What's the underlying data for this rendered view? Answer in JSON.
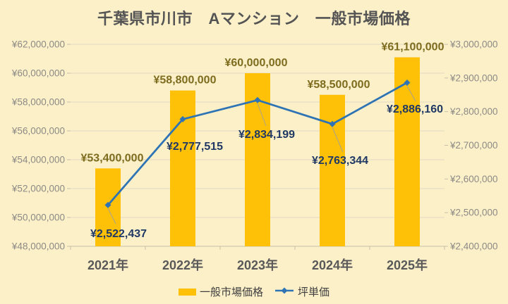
{
  "title": "千葉県市川市　Aマンション　一般市場価格",
  "colors": {
    "background": "#FCF0C9",
    "bar": "#FFC008",
    "line": "#2E74B5",
    "bar_label": "#7E6C1E",
    "line_label": "#1F3864",
    "axis_text": "#8C8A85",
    "category_text": "#595959",
    "grid": "#DFD8C3",
    "baseline": "#C6BFA9",
    "leader": "#ABA28C"
  },
  "chart_data": {
    "type": "combo",
    "title": "千葉県市川市　Aマンション　一般市場価格",
    "categories": [
      "2021年",
      "2022年",
      "2023年",
      "2024年",
      "2025年"
    ],
    "series": [
      {
        "name": "一般市場価格",
        "type": "bar",
        "axis": "left",
        "values": [
          53400000,
          58800000,
          60000000,
          58500000,
          61100000
        ],
        "labels": [
          "¥53,400,000",
          "¥58,800,000",
          "¥60,000,000",
          "¥58,500,000",
          "¥61,100,000"
        ]
      },
      {
        "name": "坪単価",
        "type": "line",
        "axis": "right",
        "values": [
          2522437,
          2777515,
          2834199,
          2763344,
          2886160
        ],
        "labels": [
          "¥2,522,437",
          "¥2,777,515",
          "¥2,834,199",
          "¥2,763,344",
          "¥2,886,160"
        ]
      }
    ],
    "left_axis": {
      "min": 48000000,
      "max": 62000000,
      "step": 2000000,
      "tick_labels": [
        "¥62,000,000",
        "¥60,000,000",
        "¥58,000,000",
        "¥56,000,000",
        "¥54,000,000",
        "¥52,000,000",
        "¥50,000,000",
        "¥48,000,000"
      ]
    },
    "right_axis": {
      "min": 2400000,
      "max": 3000000,
      "step": 100000,
      "tick_labels": [
        "¥3,000,000",
        "¥2,900,000",
        "¥2,800,000",
        "¥2,700,000",
        "¥2,600,000",
        "¥2,500,000",
        "¥2,400,000"
      ]
    },
    "grid": true,
    "legend_position": "bottom"
  },
  "legend": {
    "items": [
      {
        "label": "一般市場価格",
        "swatch": "bar"
      },
      {
        "label": "坪単価",
        "swatch": "line"
      }
    ]
  }
}
